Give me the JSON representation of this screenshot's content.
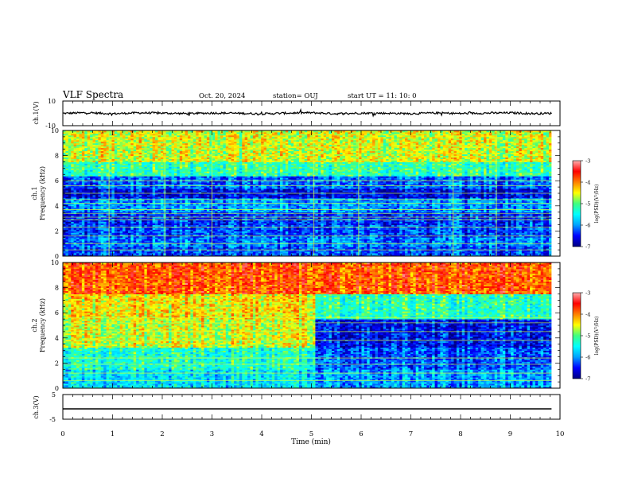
{
  "header": {
    "title": "VLF Spectra",
    "date": "Oct. 20, 2024",
    "station": "station= OUJ",
    "start_ut": "start  UT =   11: 10: 0"
  },
  "colors": {
    "colormap": [
      "#000080",
      "#0000ff",
      "#00a0ff",
      "#00ffff",
      "#40ff80",
      "#ffff00",
      "#ff8000",
      "#ff0000",
      "#ffb0b0"
    ],
    "trace": "#000000",
    "hline": "#c8ff40"
  },
  "chart_data": [
    {
      "id": "ch1-waveform",
      "type": "line",
      "ylabel": "ch.1(V)",
      "ylim": [
        -10,
        10
      ],
      "yticks": [
        "10",
        "-10"
      ],
      "xlim": [
        0,
        10
      ],
      "xlabel": "Time (min)",
      "series": [
        {
          "x": [
            0,
            0.5,
            1,
            1.5,
            2,
            2.5,
            3,
            3.5,
            4,
            4.5,
            5,
            5.5,
            6,
            6.5,
            7,
            7.5,
            8,
            8.5,
            9,
            9.5,
            9.83
          ],
          "y": [
            0,
            0.5,
            -0.3,
            0.4,
            0.2,
            -0.2,
            0.3,
            0.1,
            -0.4,
            0.2,
            0.5,
            -0.3,
            0.2,
            0.1,
            -0.2,
            0.3,
            -0.1,
            0.2,
            0.4,
            -0.2,
            0
          ]
        }
      ]
    },
    {
      "id": "ch1-spectrogram",
      "type": "heatmap",
      "ylabel": "ch.1\nFrequency (kHz)",
      "ylim": [
        0,
        10
      ],
      "yticks": [
        "0",
        "2",
        "4",
        "6",
        "8",
        "10"
      ],
      "xlim": [
        0,
        10
      ],
      "data_end_min": 9.83,
      "colorbar": {
        "label": "log(PSD)(V²/Hz)",
        "range": [
          -7,
          -3
        ],
        "ticks": [
          "-3",
          "-4",
          "-5",
          "-6",
          "-7"
        ]
      },
      "bands": [
        {
          "f": [
            0,
            0.7
          ],
          "level": -6.3
        },
        {
          "f": [
            0.7,
            1.5
          ],
          "level": -6.1
        },
        {
          "f": [
            1.5,
            2.5
          ],
          "level": -6.3
        },
        {
          "f": [
            2.5,
            3.5
          ],
          "level": -6.4
        },
        {
          "f": [
            3.5,
            4.6
          ],
          "level": -6.0
        },
        {
          "f": [
            4.6,
            5.4
          ],
          "level": -6.6
        },
        {
          "f": [
            5.4,
            6.4
          ],
          "level": -6.2
        },
        {
          "f": [
            6.4,
            7.5
          ],
          "level": -5.2
        },
        {
          "f": [
            7.5,
            10
          ],
          "level": -4.6
        }
      ],
      "hlines_khz": [
        0.5,
        1.0,
        1.6,
        2.3,
        2.9,
        3.1,
        3.4,
        3.7,
        4.2,
        4.5,
        5.0,
        5.6,
        6.0
      ],
      "spikes_min": [
        0.93,
        2.05,
        3.0,
        5.05,
        5.95,
        7.85,
        8.72
      ]
    },
    {
      "id": "ch2-spectrogram",
      "type": "heatmap",
      "ylabel": "ch.2\nFrequency (kHz)",
      "ylim": [
        0,
        10
      ],
      "yticks": [
        "0",
        "2",
        "4",
        "6",
        "8",
        "10"
      ],
      "xlim": [
        0,
        10
      ],
      "data_end_min": 9.83,
      "colorbar": {
        "label": "log(PSD)(V²/Hz)",
        "range": [
          -7,
          -3
        ],
        "ticks": [
          "-3",
          "-4",
          "-5",
          "-6",
          "-7"
        ]
      },
      "bands_before_5min": [
        {
          "f": [
            0,
            1.5
          ],
          "level": -5.6
        },
        {
          "f": [
            1.5,
            3.2
          ],
          "level": -5.3
        },
        {
          "f": [
            3.2,
            5.5
          ],
          "level": -4.6
        },
        {
          "f": [
            5.5,
            7.5
          ],
          "level": -4.4
        },
        {
          "f": [
            7.5,
            10
          ],
          "level": -3.8
        }
      ],
      "bands_after_5min": [
        {
          "f": [
            0,
            1.5
          ],
          "level": -5.9
        },
        {
          "f": [
            1.5,
            3.2
          ],
          "level": -6.2
        },
        {
          "f": [
            3.2,
            5.5
          ],
          "level": -6.5
        },
        {
          "f": [
            5.5,
            7.5
          ],
          "level": -5.2
        },
        {
          "f": [
            7.5,
            10
          ],
          "level": -3.8
        }
      ],
      "hlines_khz": [
        0.6,
        1.2,
        1.9,
        2.4,
        3.8,
        4.5,
        5.2,
        5.6
      ]
    },
    {
      "id": "ch3-waveform",
      "type": "line",
      "ylabel": "ch.3(V)",
      "ylim": [
        -5,
        5
      ],
      "yticks": [
        "5",
        "0",
        "-5"
      ],
      "xlim": [
        0,
        10
      ],
      "series": [
        {
          "x": [
            0,
            9.83
          ],
          "y": [
            -0.8,
            -0.8
          ]
        }
      ]
    }
  ],
  "x_axis": {
    "label": "Time (min)",
    "ticks": [
      "0",
      "1",
      "2",
      "3",
      "4",
      "5",
      "6",
      "7",
      "8",
      "9",
      "10"
    ]
  }
}
